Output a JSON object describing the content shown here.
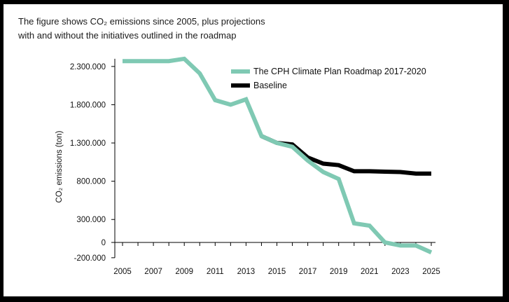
{
  "caption": {
    "line1": "The figure shows CO₂ emissions since 2005, plus projections",
    "line2": "with and without the initiatives outlined in the roadmap"
  },
  "chart_data": {
    "type": "line",
    "ylabel": "CO₂ emissions (ton)",
    "ylim": [
      -200000,
      2400000
    ],
    "xlim": [
      2005,
      2025
    ],
    "y_ticks": [
      {
        "value": 2300000,
        "label": "2.300.000"
      },
      {
        "value": 1800000,
        "label": "1.800.000"
      },
      {
        "value": 1300000,
        "label": "1.300.000"
      },
      {
        "value": 800000,
        "label": "800.000"
      },
      {
        "value": 300000,
        "label": "300.000"
      },
      {
        "value": 0,
        "label": "0"
      },
      {
        "value": -200000,
        "label": "-200.000"
      }
    ],
    "x_tick_labels": [
      "2005",
      "2007",
      "2009",
      "2011",
      "2013",
      "2015",
      "2017",
      "2019",
      "2021",
      "2023",
      "2025"
    ],
    "grid": false,
    "legend_position": "top-right",
    "series": [
      {
        "name": "Baseline",
        "color": "#000000",
        "points": [
          [
            2014,
            1390000
          ],
          [
            2015,
            1300000
          ],
          [
            2016,
            1280000
          ],
          [
            2017,
            1110000
          ],
          [
            2018,
            1030000
          ],
          [
            2019,
            1010000
          ],
          [
            2020,
            930000
          ],
          [
            2021,
            930000
          ],
          [
            2022,
            925000
          ],
          [
            2023,
            920000
          ],
          [
            2024,
            900000
          ],
          [
            2025,
            900000
          ]
        ]
      },
      {
        "name": "The CPH Climate Plan Roadmap 2017-2020",
        "color": "#7fc9b3",
        "points": [
          [
            2005,
            2370000
          ],
          [
            2006,
            2370000
          ],
          [
            2007,
            2370000
          ],
          [
            2008,
            2370000
          ],
          [
            2009,
            2400000
          ],
          [
            2010,
            2210000
          ],
          [
            2011,
            1860000
          ],
          [
            2012,
            1800000
          ],
          [
            2013,
            1870000
          ],
          [
            2014,
            1390000
          ],
          [
            2015,
            1300000
          ],
          [
            2016,
            1250000
          ],
          [
            2017,
            1070000
          ],
          [
            2018,
            920000
          ],
          [
            2019,
            830000
          ],
          [
            2020,
            250000
          ],
          [
            2021,
            220000
          ],
          [
            2022,
            0
          ],
          [
            2023,
            -40000
          ],
          [
            2024,
            -40000
          ],
          [
            2025,
            -130000
          ]
        ]
      }
    ],
    "legend_order": [
      "The CPH Climate Plan Roadmap 2017-2020",
      "Baseline"
    ]
  }
}
